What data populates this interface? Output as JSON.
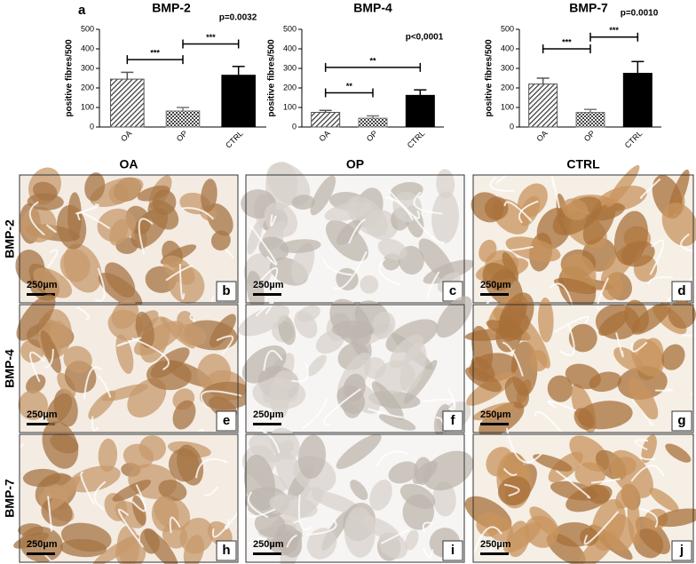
{
  "panel_label": "a",
  "chart_data": [
    {
      "type": "bar",
      "title": "BMP-2",
      "subtitle": "p=0.0032",
      "y_label": "positive fibres/500",
      "categories": [
        "OA",
        "OP",
        "CTRL"
      ],
      "values": [
        245,
        82,
        265
      ],
      "errors": [
        35,
        18,
        45
      ],
      "colors": [
        "#555555",
        "#777777",
        "#000000"
      ],
      "ylim": [
        0,
        500
      ],
      "yticks": [
        0,
        100,
        200,
        300,
        400,
        500
      ],
      "annotations": [
        {
          "from": 0,
          "to": 1,
          "y": 345,
          "label": "***"
        },
        {
          "from": 1,
          "to": 2,
          "y": 425,
          "label": "***"
        }
      ]
    },
    {
      "type": "bar",
      "title": "BMP-4",
      "subtitle": "p<0,0001",
      "y_label": "positive fibres/500",
      "categories": [
        "OA",
        "OP",
        "CTRL"
      ],
      "values": [
        75,
        45,
        162
      ],
      "errors": [
        10,
        12,
        28
      ],
      "colors": [
        "#555555",
        "#777777",
        "#000000"
      ],
      "ylim": [
        0,
        500
      ],
      "yticks": [
        0,
        100,
        200,
        300,
        400,
        500
      ],
      "annotations": [
        {
          "from": 0,
          "to": 1,
          "y": 175,
          "label": "**"
        },
        {
          "from": 0,
          "to": 2,
          "y": 305,
          "label": "**"
        }
      ]
    },
    {
      "type": "bar",
      "title": "BMP-7",
      "subtitle": "p=0.0010",
      "y_label": "positive fibres/500",
      "categories": [
        "OA",
        "OP",
        "CTRL"
      ],
      "values": [
        220,
        75,
        275
      ],
      "errors": [
        30,
        15,
        60
      ],
      "colors": [
        "#555555",
        "#777777",
        "#000000"
      ],
      "ylim": [
        0,
        500
      ],
      "yticks": [
        0,
        100,
        200,
        300,
        400,
        500
      ],
      "annotations": [
        {
          "from": 0,
          "to": 1,
          "y": 400,
          "label": "***"
        },
        {
          "from": 1,
          "to": 2,
          "y": 460,
          "label": "***"
        }
      ]
    }
  ],
  "image_grid": {
    "columns": [
      "OA",
      "OP",
      "CTRL"
    ],
    "rows": [
      "BMP-2",
      "BMP-4",
      "BMP-7"
    ],
    "panels": [
      "b",
      "c",
      "d",
      "e",
      "f",
      "g",
      "h",
      "i",
      "j"
    ],
    "scale_bar": "250µm"
  }
}
